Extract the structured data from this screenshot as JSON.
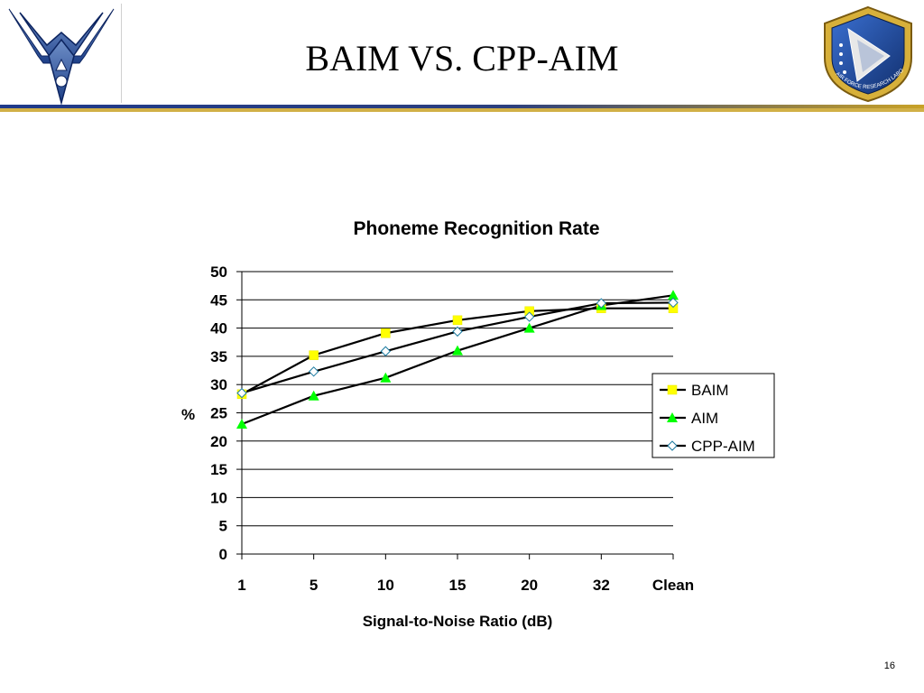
{
  "slide": {
    "title": "BAIM VS. CPP-AIM",
    "page_number": "16",
    "logo_left": "air-force-wings-logo",
    "logo_right": "afrl-shield-logo",
    "logo_right_text": "AIR FORCE RESEARCH LABORATORY",
    "colors": {
      "header_bar": "#1f3a8a",
      "header_bar_end": "#c9a227",
      "chart_line": "#000000"
    }
  },
  "chart_data": {
    "type": "line",
    "title": "Phoneme Recognition Rate",
    "xlabel": "Signal-to-Noise Ratio (dB)",
    "ylabel": "%",
    "categories": [
      "1",
      "5",
      "10",
      "15",
      "20",
      "32",
      "Clean"
    ],
    "ylim": [
      0,
      50
    ],
    "yticks": [
      0,
      5,
      10,
      15,
      20,
      25,
      30,
      35,
      40,
      45,
      50
    ],
    "grid": true,
    "legend_position": "right",
    "series": [
      {
        "name": "BAIM",
        "values": [
          28.3,
          35.2,
          39.1,
          41.4,
          43.0,
          43.5,
          43.5
        ],
        "marker": "square",
        "marker_color": "#ffff00"
      },
      {
        "name": "AIM",
        "values": [
          23.0,
          28.0,
          31.2,
          36.0,
          40.0,
          44.0,
          45.8
        ],
        "marker": "triangle",
        "marker_color": "#00ff00"
      },
      {
        "name": "CPP-AIM",
        "values": [
          28.5,
          32.3,
          35.9,
          39.4,
          42.0,
          44.4,
          44.5
        ],
        "marker": "diamond",
        "marker_color": "#ffffff"
      }
    ]
  }
}
